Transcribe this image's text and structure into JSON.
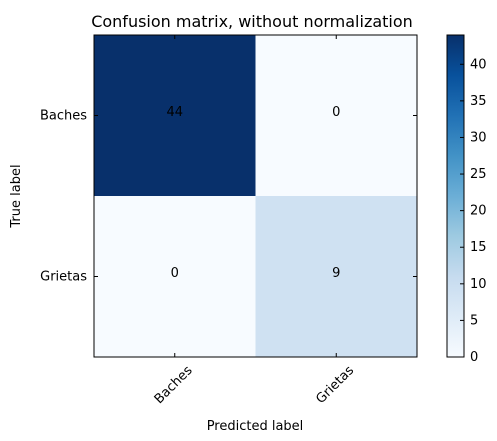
{
  "chart_data": {
    "type": "heatmap",
    "title": "Confusion matrix, without normalization",
    "xlabel": "Predicted label",
    "ylabel": "True label",
    "x_categories": [
      "Baches",
      "Grietas"
    ],
    "y_categories": [
      "Baches",
      "Grietas"
    ],
    "values": [
      [
        44,
        0
      ],
      [
        0,
        9
      ]
    ],
    "colormap": "Blues",
    "colorbar": {
      "range": [
        0,
        44
      ],
      "ticks": [
        0,
        5,
        10,
        15,
        20,
        25,
        30,
        35,
        40
      ]
    },
    "grid": false,
    "legend": "colorbar-right"
  }
}
